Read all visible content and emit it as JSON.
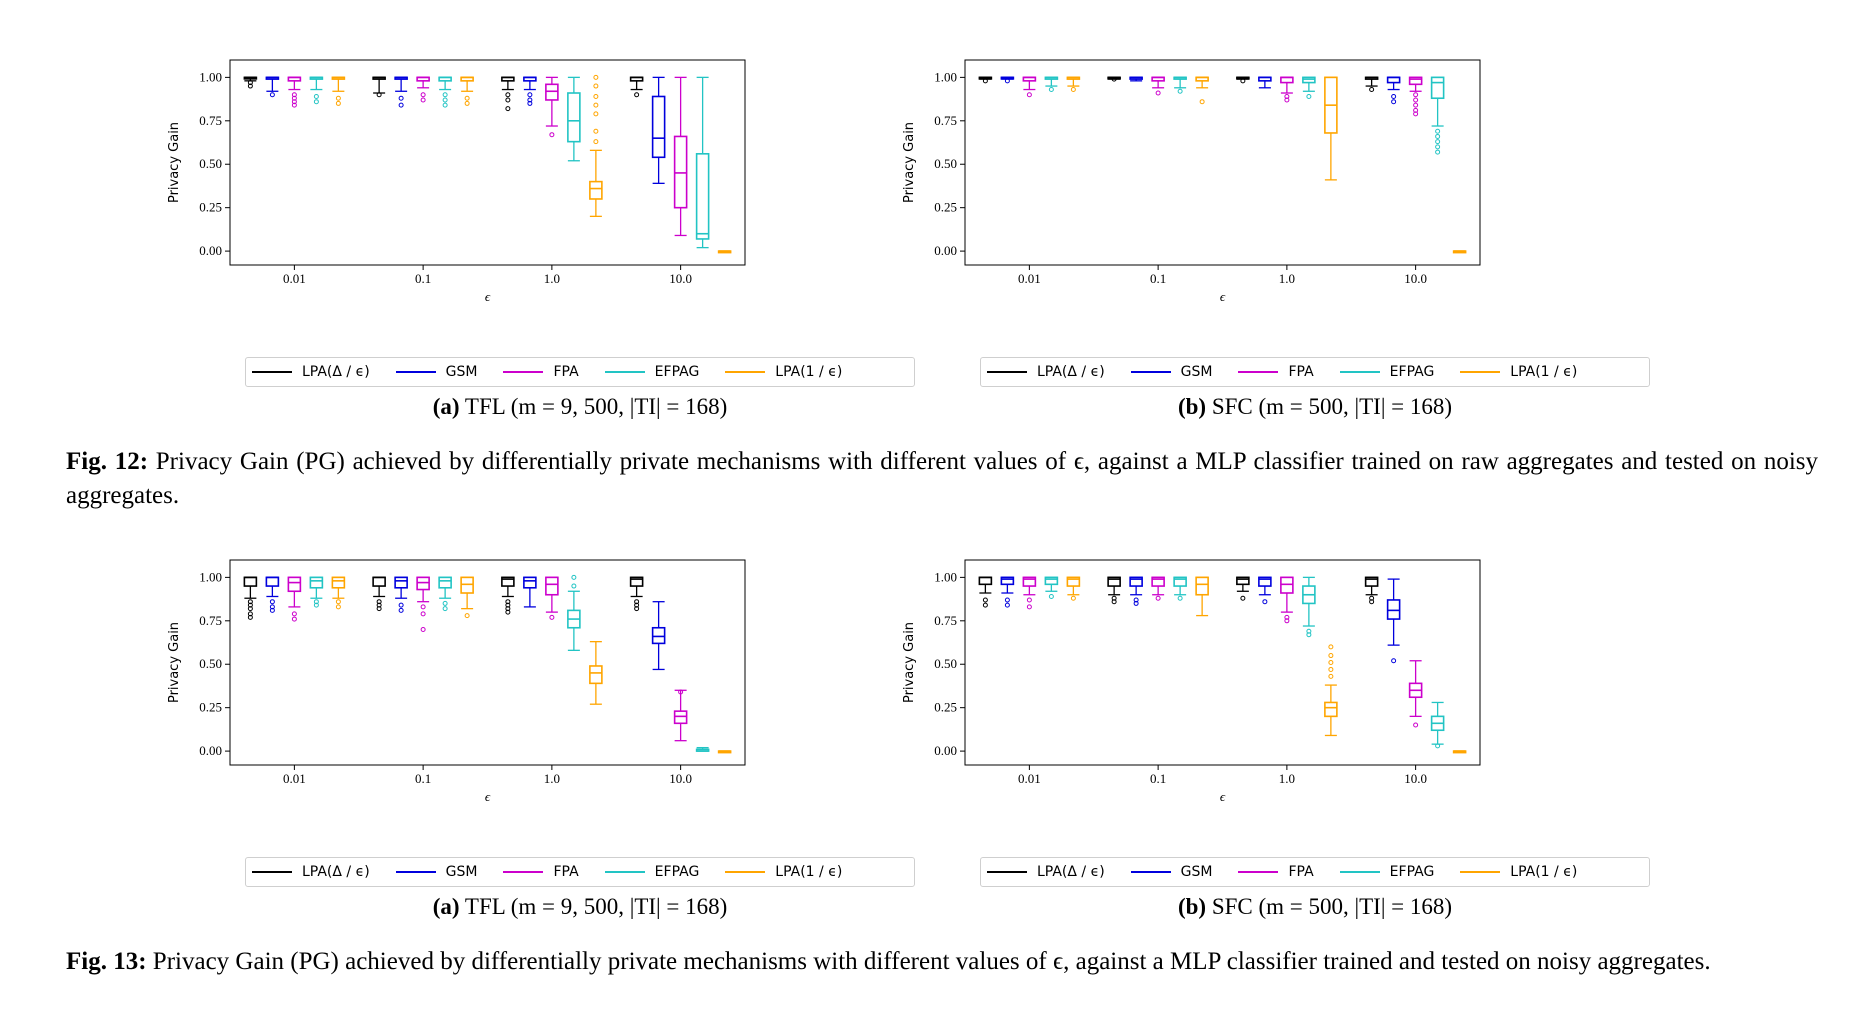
{
  "figures": [
    {
      "caption_label": "Fig. 12:",
      "caption_text": "Privacy Gain (PG) achieved by differentially private mechanisms with different values of ϵ, against a MLP classifier trained on raw aggregates and tested on noisy aggregates.",
      "subfigures": [
        {
          "label": "(a)",
          "text": "TFL (m = 9, 500, |TI| = 168)"
        },
        {
          "label": "(b)",
          "text": "SFC (m = 500, |TI| = 168)"
        }
      ]
    },
    {
      "caption_label": "Fig. 13:",
      "caption_text": "Privacy Gain (PG) achieved by differentially private mechanisms with different values of ϵ, against a MLP classifier trained and tested on noisy aggregates.",
      "subfigures": [
        {
          "label": "(a)",
          "text": "TFL (m = 9, 500, |TI| = 168)"
        },
        {
          "label": "(b)",
          "text": "SFC (m = 500, |TI| = 168)"
        }
      ]
    }
  ],
  "legend": [
    {
      "label": "LPA(Δ / ϵ)",
      "color": "#000000"
    },
    {
      "label": "GSM",
      "color": "#0000dd"
    },
    {
      "label": "FPA",
      "color": "#cc00cc"
    },
    {
      "label": "EFPAG",
      "color": "#22c4c4"
    },
    {
      "label": "LPA(1 / ϵ)",
      "color": "#ffa500"
    }
  ],
  "chart_data": [
    {
      "id": "fig12a",
      "type": "boxplot",
      "ylabel": "Privacy Gain",
      "xlabel": "ϵ",
      "categories": [
        "0.01",
        "0.1",
        "1.0",
        "10.0"
      ],
      "yticks": [
        "0.00",
        "0.25",
        "0.50",
        "0.75",
        "1.00"
      ],
      "ylim": [
        -0.08,
        1.1
      ],
      "series": [
        "LPA(Δ / ϵ)",
        "GSM",
        "FPA",
        "EFPAG",
        "LPA(1 / ϵ)"
      ],
      "boxes": [
        [
          [
            0.98,
            1,
            1,
            1,
            1,
            [
              0.97,
              0.95
            ]
          ],
          [
            0.92,
            0.99,
            1,
            1,
            1,
            [
              0.9
            ]
          ],
          [
            0.93,
            0.98,
            1,
            1,
            1,
            [
              0.9,
              0.88,
              0.86,
              0.84
            ]
          ],
          [
            0.93,
            0.99,
            1,
            1,
            1,
            [
              0.89,
              0.86
            ]
          ],
          [
            0.92,
            0.99,
            1,
            1,
            1,
            [
              0.88,
              0.85
            ]
          ]
        ],
        [
          [
            0.91,
            0.99,
            1,
            1,
            1,
            [
              0.9
            ]
          ],
          [
            0.92,
            0.99,
            1,
            1,
            1,
            [
              0.88,
              0.84
            ]
          ],
          [
            0.94,
            0.98,
            1,
            1,
            1,
            [
              0.9,
              0.87
            ]
          ],
          [
            0.93,
            0.98,
            1,
            1,
            1,
            [
              0.9,
              0.87,
              0.84
            ]
          ],
          [
            0.92,
            0.98,
            1,
            1,
            1,
            [
              0.88,
              0.85
            ]
          ]
        ],
        [
          [
            0.93,
            0.98,
            1,
            1,
            1,
            [
              0.9,
              0.87,
              0.82
            ]
          ],
          [
            0.93,
            0.98,
            1,
            1,
            1,
            [
              0.9,
              0.87,
              0.85
            ]
          ],
          [
            0.72,
            0.87,
            0.92,
            0.96,
            1,
            [
              0.67
            ]
          ],
          [
            0.52,
            0.63,
            0.75,
            0.91,
            1,
            []
          ],
          [
            0.2,
            0.3,
            0.36,
            0.4,
            0.58,
            [
              0.63,
              0.69,
              0.79,
              0.84,
              0.89,
              0.95,
              1
            ]
          ]
        ],
        [
          [
            0.93,
            0.98,
            1,
            1,
            1,
            [
              0.9
            ]
          ],
          [
            0.39,
            0.54,
            0.65,
            0.89,
            1,
            []
          ],
          [
            0.09,
            0.25,
            0.45,
            0.66,
            1,
            []
          ],
          [
            0.02,
            0.07,
            0.1,
            0.56,
            1,
            []
          ],
          [
            0,
            0,
            0,
            0,
            0,
            []
          ]
        ]
      ]
    },
    {
      "id": "fig12b",
      "type": "boxplot",
      "ylabel": "Privacy Gain",
      "xlabel": "ϵ",
      "categories": [
        "0.01",
        "0.1",
        "1.0",
        "10.0"
      ],
      "yticks": [
        "0.00",
        "0.25",
        "0.50",
        "0.75",
        "1.00"
      ],
      "ylim": [
        -0.08,
        1.1
      ],
      "series": [
        "LPA(Δ / ϵ)",
        "GSM",
        "FPA",
        "EFPAG",
        "LPA(1 / ϵ)"
      ],
      "boxes": [
        [
          [
            0.99,
            1,
            1,
            1,
            1,
            [
              0.98
            ]
          ],
          [
            0.99,
            1,
            1,
            1,
            1,
            [
              0.98
            ]
          ],
          [
            0.93,
            0.98,
            1,
            1,
            1,
            [
              0.9
            ]
          ],
          [
            0.95,
            0.99,
            1,
            1,
            1,
            [
              0.93
            ]
          ],
          [
            0.95,
            0.99,
            1,
            1,
            1,
            [
              0.93
            ]
          ]
        ],
        [
          [
            0.99,
            1,
            1,
            1,
            1,
            [
              0.99
            ]
          ],
          [
            0.98,
            0.99,
            1,
            1,
            1,
            []
          ],
          [
            0.94,
            0.98,
            1,
            1,
            1,
            [
              0.91
            ]
          ],
          [
            0.94,
            0.99,
            1,
            1,
            1,
            [
              0.92
            ]
          ],
          [
            0.94,
            0.98,
            1,
            1,
            1,
            [
              0.86
            ]
          ]
        ],
        [
          [
            0.99,
            1,
            1,
            1,
            1,
            [
              0.98
            ]
          ],
          [
            0.94,
            0.98,
            1,
            1,
            1,
            []
          ],
          [
            0.91,
            0.97,
            1,
            1,
            1,
            [
              0.89,
              0.87
            ]
          ],
          [
            0.92,
            0.97,
            0.99,
            1,
            1,
            [
              0.89
            ]
          ],
          [
            0.41,
            0.68,
            0.84,
            1,
            1,
            []
          ]
        ],
        [
          [
            0.95,
            0.99,
            1,
            1,
            1,
            [
              0.93
            ]
          ],
          [
            0.93,
            0.97,
            1,
            1,
            1,
            [
              0.89,
              0.86
            ]
          ],
          [
            0.92,
            0.96,
            0.99,
            1,
            1,
            [
              0.9,
              0.87,
              0.84,
              0.81,
              0.79
            ]
          ],
          [
            0.72,
            0.88,
            0.97,
            1,
            1,
            [
              0.69,
              0.66,
              0.63,
              0.6,
              0.57
            ]
          ],
          [
            0,
            0,
            0,
            0,
            0,
            []
          ]
        ]
      ]
    },
    {
      "id": "fig13a",
      "type": "boxplot",
      "ylabel": "Privacy Gain",
      "xlabel": "ϵ",
      "categories": [
        "0.01",
        "0.1",
        "1.0",
        "10.0"
      ],
      "yticks": [
        "0.00",
        "0.25",
        "0.50",
        "0.75",
        "1.00"
      ],
      "ylim": [
        -0.08,
        1.1
      ],
      "series": [
        "LPA(Δ / ϵ)",
        "GSM",
        "FPA",
        "EFPAG",
        "LPA(1 / ϵ)"
      ],
      "boxes": [
        [
          [
            0.88,
            0.95,
            1,
            1,
            1,
            [
              0.86,
              0.84,
              0.82,
              0.79,
              0.77
            ]
          ],
          [
            0.89,
            0.95,
            1,
            1,
            1,
            [
              0.86,
              0.83,
              0.81
            ]
          ],
          [
            0.83,
            0.92,
            0.97,
            1,
            1,
            [
              0.79,
              0.76
            ]
          ],
          [
            0.88,
            0.94,
            0.98,
            1,
            1,
            [
              0.86,
              0.84
            ]
          ],
          [
            0.88,
            0.94,
            0.98,
            1,
            1,
            [
              0.86,
              0.83
            ]
          ]
        ],
        [
          [
            0.89,
            0.95,
            1,
            1,
            1,
            [
              0.86,
              0.84,
              0.82
            ]
          ],
          [
            0.88,
            0.94,
            0.98,
            1,
            1,
            [
              0.84,
              0.81
            ]
          ],
          [
            0.86,
            0.93,
            0.97,
            1,
            1,
            [
              0.83,
              0.79,
              0.7
            ]
          ],
          [
            0.88,
            0.94,
            0.98,
            1,
            1,
            [
              0.85,
              0.82
            ]
          ],
          [
            0.82,
            0.91,
            0.96,
            1,
            1,
            [
              0.78
            ]
          ]
        ],
        [
          [
            0.89,
            0.95,
            0.99,
            1,
            1,
            [
              0.86,
              0.84,
              0.82,
              0.8
            ]
          ],
          [
            0.83,
            0.94,
            0.98,
            1,
            1,
            []
          ],
          [
            0.8,
            0.9,
            0.96,
            1,
            1,
            [
              0.77
            ]
          ],
          [
            0.58,
            0.71,
            0.76,
            0.81,
            0.92,
            [
              0.95,
              1
            ]
          ],
          [
            0.27,
            0.39,
            0.45,
            0.49,
            0.63,
            []
          ]
        ],
        [
          [
            0.89,
            0.95,
            0.99,
            1,
            1,
            [
              0.86,
              0.84,
              0.82
            ]
          ],
          [
            0.47,
            0.62,
            0.66,
            0.71,
            0.86,
            []
          ],
          [
            0.06,
            0.16,
            0.2,
            0.23,
            0.35,
            [
              0.34
            ]
          ],
          [
            0,
            0,
            0.01,
            0.01,
            0.02,
            []
          ],
          [
            0,
            0,
            0,
            0,
            0,
            []
          ]
        ]
      ]
    },
    {
      "id": "fig13b",
      "type": "boxplot",
      "ylabel": "Privacy Gain",
      "xlabel": "ϵ",
      "categories": [
        "0.01",
        "0.1",
        "1.0",
        "10.0"
      ],
      "yticks": [
        "0.00",
        "0.25",
        "0.50",
        "0.75",
        "1.00"
      ],
      "ylim": [
        -0.08,
        1.1
      ],
      "series": [
        "LPA(Δ / ϵ)",
        "GSM",
        "FPA",
        "EFPAG",
        "LPA(1 / ϵ)"
      ],
      "boxes": [
        [
          [
            0.91,
            0.96,
            1,
            1,
            1,
            [
              0.87,
              0.84
            ]
          ],
          [
            0.91,
            0.96,
            0.99,
            1,
            1,
            [
              0.87,
              0.84
            ]
          ],
          [
            0.9,
            0.95,
            0.99,
            1,
            1,
            [
              0.87,
              0.83
            ]
          ],
          [
            0.92,
            0.96,
            0.99,
            1,
            1,
            [
              0.89
            ]
          ],
          [
            0.9,
            0.95,
            0.99,
            1,
            1,
            [
              0.88
            ]
          ]
        ],
        [
          [
            0.9,
            0.95,
            0.99,
            1,
            1,
            [
              0.88,
              0.86
            ]
          ],
          [
            0.9,
            0.95,
            0.99,
            1,
            1,
            [
              0.87,
              0.85
            ]
          ],
          [
            0.9,
            0.95,
            0.99,
            1,
            1,
            [
              0.88
            ]
          ],
          [
            0.9,
            0.95,
            0.99,
            1,
            1,
            [
              0.88
            ]
          ],
          [
            0.78,
            0.9,
            0.96,
            1,
            1,
            []
          ]
        ],
        [
          [
            0.92,
            0.96,
            0.99,
            1,
            1,
            [
              0.88
            ]
          ],
          [
            0.9,
            0.95,
            0.99,
            1,
            1,
            [
              0.86
            ]
          ],
          [
            0.8,
            0.91,
            0.96,
            1,
            1,
            [
              0.77,
              0.75
            ]
          ],
          [
            0.72,
            0.85,
            0.9,
            0.95,
            1,
            [
              0.69,
              0.67
            ]
          ],
          [
            0.09,
            0.2,
            0.25,
            0.28,
            0.38,
            [
              0.43,
              0.47,
              0.51,
              0.55,
              0.6
            ]
          ]
        ],
        [
          [
            0.9,
            0.95,
            0.99,
            1,
            1,
            [
              0.88,
              0.86
            ]
          ],
          [
            0.61,
            0.76,
            0.81,
            0.87,
            0.99,
            [
              0.52
            ]
          ],
          [
            0.2,
            0.31,
            0.35,
            0.39,
            0.52,
            [
              0.15
            ]
          ],
          [
            0.04,
            0.12,
            0.16,
            0.2,
            0.28,
            [
              0.03
            ]
          ],
          [
            0,
            0,
            0,
            0,
            0,
            []
          ]
        ]
      ]
    }
  ]
}
